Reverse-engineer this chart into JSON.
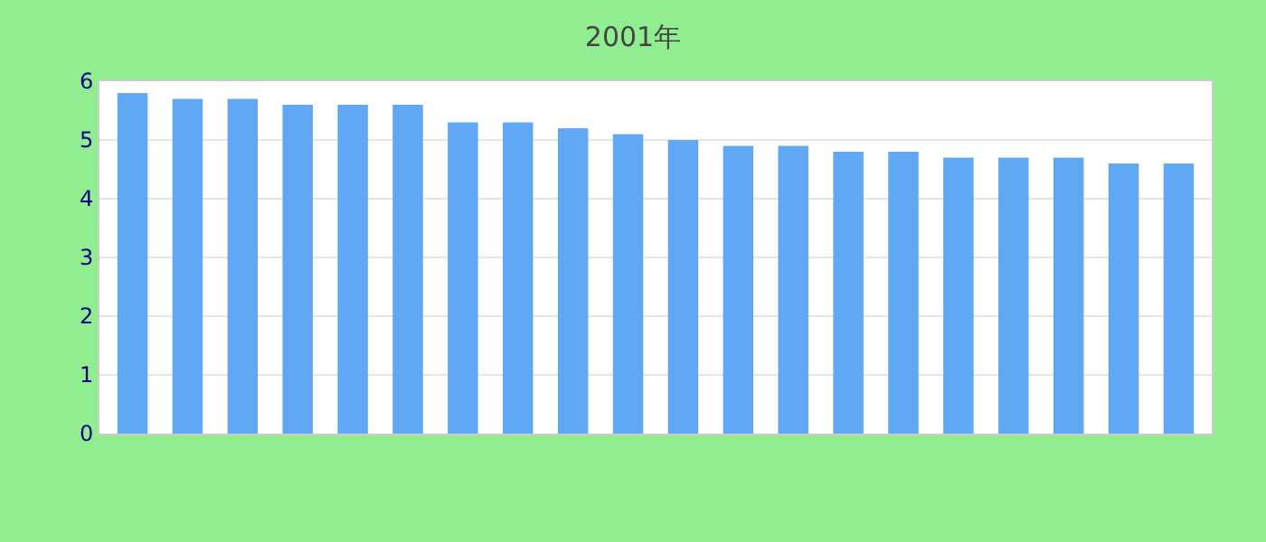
{
  "chart_data": {
    "type": "bar",
    "subtitle": "2001年",
    "categories": [
      null,
      null,
      null,
      null,
      null,
      null,
      null,
      null,
      null,
      null,
      null,
      null,
      null,
      null,
      null,
      null,
      null,
      null,
      null,
      null
    ],
    "values": [
      5.8,
      5.7,
      5.7,
      5.6,
      5.6,
      5.6,
      5.3,
      5.3,
      5.2,
      5.1,
      5.0,
      4.9,
      4.9,
      4.8,
      4.8,
      4.7,
      4.7,
      4.7,
      4.6,
      4.6
    ],
    "color": "#60a8f4",
    "ylim": [
      0,
      6
    ],
    "yticks": [
      0,
      1,
      2,
      3,
      4,
      5,
      6
    ],
    "grid": "y"
  }
}
